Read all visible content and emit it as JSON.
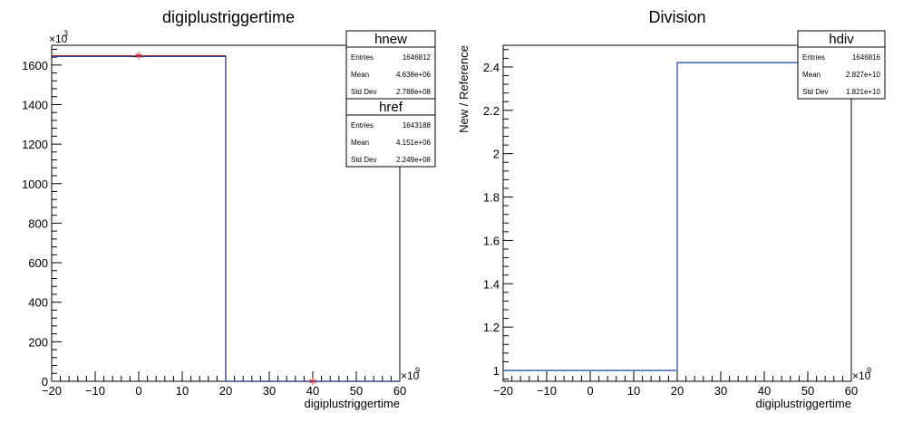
{
  "chart_data": [
    {
      "type": "step",
      "title": "digiplustriggertime",
      "xlabel": "digiplustriggertime",
      "ylabel": "",
      "x_multiplier": "×10",
      "x_multiplier_exp": "9",
      "y_multiplier": "×10",
      "y_multiplier_exp": "3",
      "xlim": [
        -20,
        60
      ],
      "ylim": [
        0,
        1700
      ],
      "x_ticks": [
        -20,
        -10,
        0,
        10,
        20,
        30,
        40,
        50,
        60
      ],
      "x_tick_labels": [
        "−20",
        "−10",
        "0",
        "10",
        "20",
        "30",
        "40",
        "50",
        "60"
      ],
      "y_ticks": [
        0,
        200,
        400,
        600,
        800,
        1000,
        1200,
        1400,
        1600
      ],
      "y_tick_labels": [
        "0",
        "200",
        "400",
        "600",
        "800",
        "1000",
        "1200",
        "1400",
        "1600"
      ],
      "bin_edges": [
        -20,
        20,
        60
      ],
      "series": [
        {
          "name": "hnew",
          "values": [
            1646.812,
            0
          ],
          "color": "#d42323"
        },
        {
          "name": "href",
          "values": [
            1643.188,
            0
          ],
          "color": "#1f3f9a"
        }
      ],
      "markers": [
        {
          "series": "hnew",
          "x": 0,
          "y": 1646.812,
          "symbol": "*",
          "color": "#d42323"
        },
        {
          "series": "hnew",
          "x": 40,
          "y": 0,
          "symbol": "*",
          "color": "#d42323"
        }
      ],
      "stat_boxes": [
        {
          "name": "hnew",
          "rows": [
            {
              "label": "Entries",
              "value": "1646812"
            },
            {
              "label": "Mean",
              "value": "4.638e+06"
            },
            {
              "label": "Std Dev",
              "value": "2.788e+08"
            }
          ]
        },
        {
          "name": "href",
          "rows": [
            {
              "label": "Entries",
              "value": "1643188"
            },
            {
              "label": "Mean",
              "value": "4.151e+06"
            },
            {
              "label": "Std Dev",
              "value": "2.249e+08"
            }
          ]
        }
      ]
    },
    {
      "type": "step",
      "title": "Division",
      "xlabel": "digiplustriggertime",
      "ylabel": "New / Reference",
      "x_multiplier": "×10",
      "x_multiplier_exp": "9",
      "xlim": [
        -20,
        60
      ],
      "ylim": [
        0.95,
        2.5
      ],
      "x_ticks": [
        -20,
        -10,
        0,
        10,
        20,
        30,
        40,
        50,
        60
      ],
      "x_tick_labels": [
        "−20",
        "−10",
        "0",
        "10",
        "20",
        "30",
        "40",
        "50",
        "60"
      ],
      "y_ticks": [
        1,
        1.2,
        1.4,
        1.6,
        1.8,
        2,
        2.2,
        2.4
      ],
      "y_tick_labels": [
        "1",
        "1.2",
        "1.4",
        "1.6",
        "1.8",
        "2",
        "2.2",
        "2.4"
      ],
      "bin_edges": [
        -20,
        20,
        60
      ],
      "series": [
        {
          "name": "hdiv",
          "values": [
            1.0,
            2.42
          ],
          "color": "#1f3f9a"
        }
      ],
      "stat_boxes": [
        {
          "name": "hdiv",
          "rows": [
            {
              "label": "Entries",
              "value": "1646816"
            },
            {
              "label": "Mean",
              "value": "2.827e+10"
            },
            {
              "label": "Std Dev",
              "value": "1.821e+10"
            }
          ]
        }
      ]
    }
  ]
}
